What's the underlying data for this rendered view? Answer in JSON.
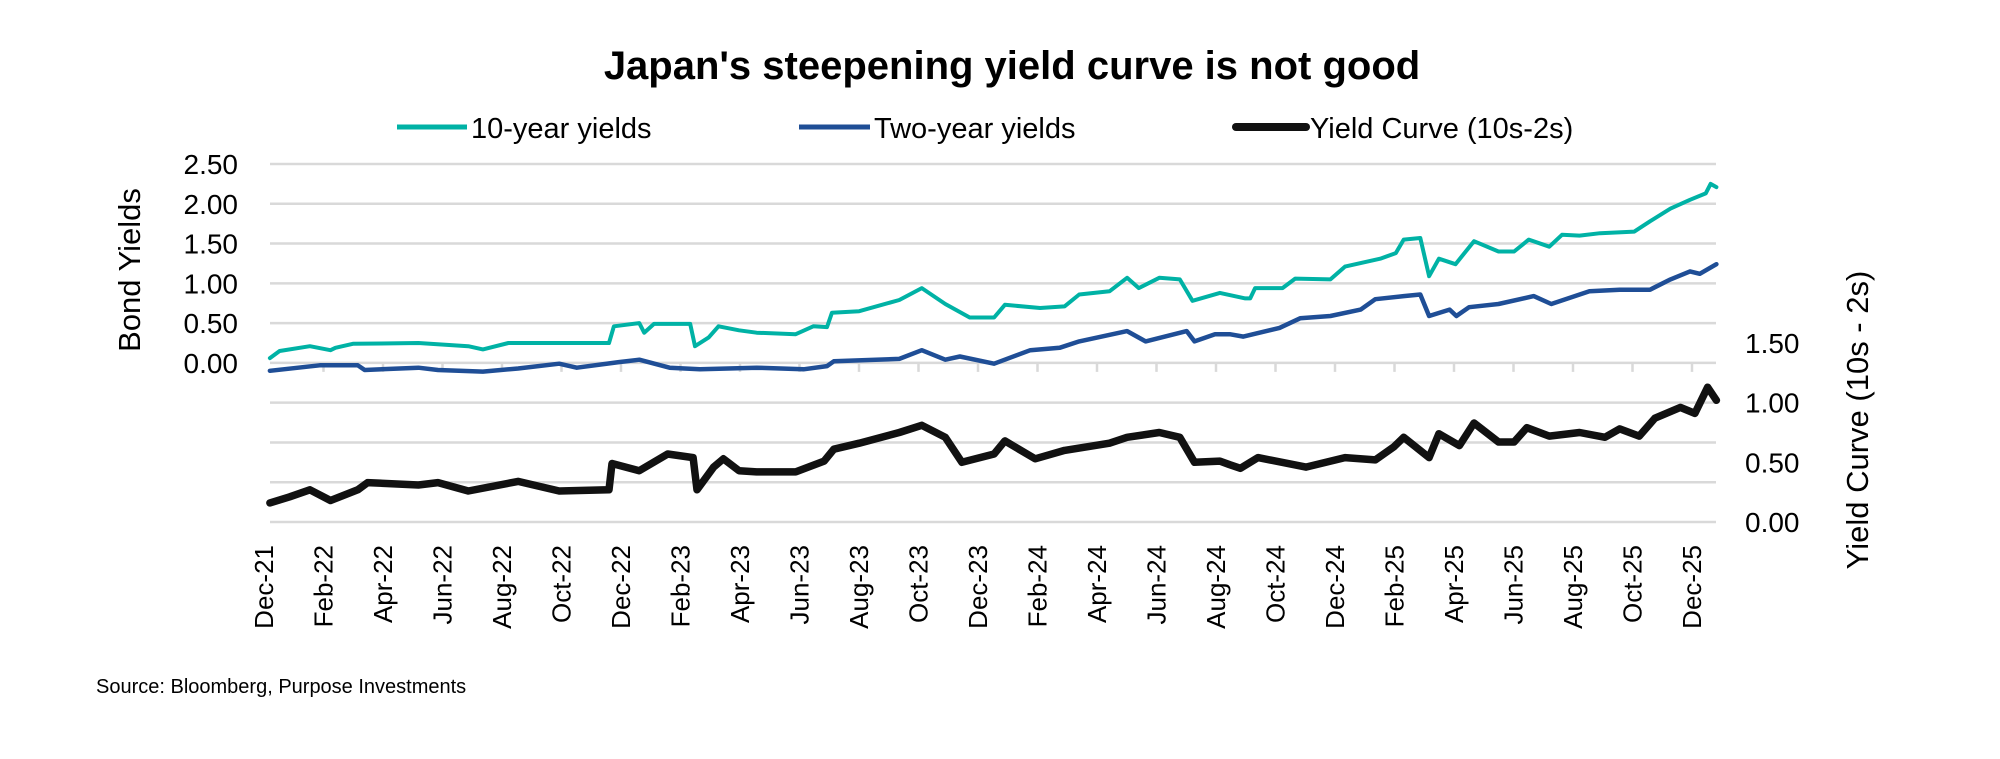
{
  "chart_data": {
    "type": "line",
    "title": "Japan's steepening yield curve is not good",
    "source": "Source: Bloomberg, Purpose Investments",
    "grid": true,
    "legend_position": "top",
    "colors": {
      "ten_year": "#00b2a5",
      "two_year": "#1f4e96",
      "curve": "#111111",
      "grid": "#d9d9d9"
    },
    "x_range": [
      "2021-12-07",
      "2026-01-01"
    ],
    "x_tick_labels": [
      "Dec-21",
      "Feb-22",
      "Apr-22",
      "Jun-22",
      "Aug-22",
      "Oct-22",
      "Dec-22",
      "Feb-23",
      "Apr-23",
      "Jun-23",
      "Aug-23",
      "Oct-23",
      "Dec-23",
      "Feb-24",
      "Apr-24",
      "Jun-24",
      "Aug-24",
      "Oct-24",
      "Dec-24",
      "Feb-25",
      "Apr-25",
      "Jun-25",
      "Aug-25",
      "Oct-25",
      "Dec-25"
    ],
    "left_axis": {
      "label": "Bond Yields",
      "range": [
        -2.0,
        2.5
      ],
      "tick_labels": [
        "0.00",
        "0.50",
        "1.00",
        "1.50",
        "2.00",
        "2.50"
      ]
    },
    "right_axis": {
      "label": "Yield Curve (10s - 2s)",
      "range": [
        0,
        3.0
      ],
      "tick_labels": [
        "0.00",
        "0.50",
        "1.00",
        "1.50"
      ]
    },
    "legend": [
      "10-year yields",
      "Two-year yields",
      "Yield Curve (10s-2s)"
    ],
    "series": [
      {
        "name": "10-year yields",
        "axis": "left",
        "points": [
          [
            "2021-12-07",
            0.06
          ],
          [
            "2021-12-17",
            0.15
          ],
          [
            "2022-01-17",
            0.21
          ],
          [
            "2022-02-07",
            0.16
          ],
          [
            "2022-02-12",
            0.19
          ],
          [
            "2022-03-02",
            0.24
          ],
          [
            "2022-05-08",
            0.25
          ],
          [
            "2022-06-28",
            0.21
          ],
          [
            "2022-07-13",
            0.17
          ],
          [
            "2022-08-08",
            0.25
          ],
          [
            "2022-11-19",
            0.25
          ],
          [
            "2022-11-24",
            0.46
          ],
          [
            "2022-12-20",
            0.5
          ],
          [
            "2022-12-25",
            0.38
          ],
          [
            "2023-01-04",
            0.49
          ],
          [
            "2023-02-10",
            0.49
          ],
          [
            "2023-02-15",
            0.21
          ],
          [
            "2023-03-01",
            0.32
          ],
          [
            "2023-03-11",
            0.46
          ],
          [
            "2023-04-01",
            0.41
          ],
          [
            "2023-04-19",
            0.38
          ],
          [
            "2023-05-29",
            0.36
          ],
          [
            "2023-06-16",
            0.46
          ],
          [
            "2023-06-30",
            0.45
          ],
          [
            "2023-07-05",
            0.63
          ],
          [
            "2023-08-02",
            0.65
          ],
          [
            "2023-09-12",
            0.79
          ],
          [
            "2023-10-05",
            0.94
          ],
          [
            "2023-10-29",
            0.74
          ],
          [
            "2023-11-23",
            0.57
          ],
          [
            "2023-12-18",
            0.57
          ],
          [
            "2023-12-29",
            0.73
          ],
          [
            "2024-02-03",
            0.69
          ],
          [
            "2024-02-28",
            0.71
          ],
          [
            "2024-03-14",
            0.86
          ],
          [
            "2024-04-14",
            0.9
          ],
          [
            "2024-05-02",
            1.07
          ],
          [
            "2024-05-14",
            0.94
          ],
          [
            "2024-06-04",
            1.07
          ],
          [
            "2024-06-25",
            1.05
          ],
          [
            "2024-07-08",
            0.78
          ],
          [
            "2024-08-05",
            0.88
          ],
          [
            "2024-08-31",
            0.81
          ],
          [
            "2024-09-05",
            0.81
          ],
          [
            "2024-09-10",
            0.94
          ],
          [
            "2024-10-08",
            0.94
          ],
          [
            "2024-10-21",
            1.06
          ],
          [
            "2024-11-26",
            1.05
          ],
          [
            "2024-12-11",
            1.21
          ],
          [
            "2025-01-16",
            1.31
          ],
          [
            "2025-02-01",
            1.38
          ],
          [
            "2025-02-09",
            1.55
          ],
          [
            "2025-02-26",
            1.57
          ],
          [
            "2025-03-07",
            1.09
          ],
          [
            "2025-03-17",
            1.31
          ],
          [
            "2025-04-03",
            1.24
          ],
          [
            "2025-04-22",
            1.53
          ],
          [
            "2025-05-17",
            1.4
          ],
          [
            "2025-06-02",
            1.4
          ],
          [
            "2025-06-17",
            1.55
          ],
          [
            "2025-07-08",
            1.46
          ],
          [
            "2025-07-21",
            1.61
          ],
          [
            "2025-08-08",
            1.6
          ],
          [
            "2025-08-29",
            1.63
          ],
          [
            "2025-10-03",
            1.65
          ],
          [
            "2025-10-19",
            1.78
          ],
          [
            "2025-11-09",
            1.94
          ],
          [
            "2025-11-29",
            2.05
          ],
          [
            "2025-12-15",
            2.13
          ],
          [
            "2025-12-20",
            2.25
          ],
          [
            "2025-12-26",
            2.21
          ]
        ]
      },
      {
        "name": "Two-year yields",
        "axis": "left",
        "points": [
          [
            "2021-12-07",
            -0.1
          ],
          [
            "2022-01-27",
            -0.03
          ],
          [
            "2022-03-07",
            -0.03
          ],
          [
            "2022-03-14",
            -0.09
          ],
          [
            "2022-05-08",
            -0.06
          ],
          [
            "2022-05-28",
            -0.09
          ],
          [
            "2022-07-13",
            -0.11
          ],
          [
            "2022-08-18",
            -0.07
          ],
          [
            "2022-09-29",
            -0.01
          ],
          [
            "2022-10-17",
            -0.06
          ],
          [
            "2022-11-29",
            0.01
          ],
          [
            "2022-12-20",
            0.04
          ],
          [
            "2023-01-20",
            -0.06
          ],
          [
            "2023-02-20",
            -0.08
          ],
          [
            "2023-04-19",
            -0.06
          ],
          [
            "2023-06-06",
            -0.08
          ],
          [
            "2023-06-30",
            -0.04
          ],
          [
            "2023-07-07",
            0.02
          ],
          [
            "2023-09-12",
            0.05
          ],
          [
            "2023-10-05",
            0.16
          ],
          [
            "2023-10-29",
            0.04
          ],
          [
            "2023-11-13",
            0.08
          ],
          [
            "2023-12-18",
            -0.01
          ],
          [
            "2024-01-24",
            0.16
          ],
          [
            "2024-02-23",
            0.19
          ],
          [
            "2024-03-14",
            0.27
          ],
          [
            "2024-05-02",
            0.4
          ],
          [
            "2024-05-21",
            0.27
          ],
          [
            "2024-07-02",
            0.4
          ],
          [
            "2024-07-10",
            0.27
          ],
          [
            "2024-07-31",
            0.36
          ],
          [
            "2024-08-15",
            0.36
          ],
          [
            "2024-08-29",
            0.33
          ],
          [
            "2024-10-05",
            0.44
          ],
          [
            "2024-10-26",
            0.56
          ],
          [
            "2024-11-26",
            0.59
          ],
          [
            "2024-12-27",
            0.67
          ],
          [
            "2025-01-11",
            0.8
          ],
          [
            "2025-02-09",
            0.84
          ],
          [
            "2025-02-26",
            0.86
          ],
          [
            "2025-03-07",
            0.59
          ],
          [
            "2025-03-28",
            0.67
          ],
          [
            "2025-04-04",
            0.59
          ],
          [
            "2025-04-17",
            0.7
          ],
          [
            "2025-05-17",
            0.74
          ],
          [
            "2025-06-22",
            0.84
          ],
          [
            "2025-07-10",
            0.74
          ],
          [
            "2025-08-18",
            0.9
          ],
          [
            "2025-09-18",
            0.92
          ],
          [
            "2025-10-19",
            0.92
          ],
          [
            "2025-11-09",
            1.05
          ],
          [
            "2025-11-29",
            1.15
          ],
          [
            "2025-12-09",
            1.12
          ],
          [
            "2025-12-26",
            1.24
          ]
        ]
      },
      {
        "name": "Yield Curve (10s-2s)",
        "axis": "right",
        "points": [
          [
            "2021-12-07",
            0.16
          ],
          [
            "2021-12-27",
            0.21
          ],
          [
            "2022-01-17",
            0.27
          ],
          [
            "2022-02-07",
            0.18
          ],
          [
            "2022-03-07",
            0.27
          ],
          [
            "2022-03-17",
            0.33
          ],
          [
            "2022-05-08",
            0.31
          ],
          [
            "2022-05-28",
            0.33
          ],
          [
            "2022-06-28",
            0.26
          ],
          [
            "2022-08-18",
            0.34
          ],
          [
            "2022-09-29",
            0.26
          ],
          [
            "2022-11-19",
            0.27
          ],
          [
            "2022-11-22",
            0.49
          ],
          [
            "2022-12-20",
            0.43
          ],
          [
            "2023-01-18",
            0.57
          ],
          [
            "2023-02-13",
            0.54
          ],
          [
            "2023-02-17",
            0.27
          ],
          [
            "2023-03-06",
            0.46
          ],
          [
            "2023-03-16",
            0.53
          ],
          [
            "2023-04-01",
            0.43
          ],
          [
            "2023-04-19",
            0.42
          ],
          [
            "2023-05-29",
            0.42
          ],
          [
            "2023-06-27",
            0.51
          ],
          [
            "2023-07-07",
            0.61
          ],
          [
            "2023-08-02",
            0.66
          ],
          [
            "2023-09-12",
            0.75
          ],
          [
            "2023-10-05",
            0.81
          ],
          [
            "2023-10-29",
            0.71
          ],
          [
            "2023-11-15",
            0.5
          ],
          [
            "2023-12-18",
            0.57
          ],
          [
            "2023-12-29",
            0.68
          ],
          [
            "2024-01-29",
            0.53
          ],
          [
            "2024-02-28",
            0.6
          ],
          [
            "2024-04-14",
            0.66
          ],
          [
            "2024-05-02",
            0.71
          ],
          [
            "2024-06-04",
            0.75
          ],
          [
            "2024-06-25",
            0.71
          ],
          [
            "2024-07-10",
            0.5
          ],
          [
            "2024-08-05",
            0.51
          ],
          [
            "2024-08-26",
            0.45
          ],
          [
            "2024-08-15",
            0.48
          ],
          [
            "2024-09-13",
            0.54
          ],
          [
            "2024-11-01",
            0.46
          ],
          [
            "2024-12-11",
            0.54
          ],
          [
            "2025-01-11",
            0.52
          ],
          [
            "2025-01-30",
            0.63
          ],
          [
            "2025-02-09",
            0.71
          ],
          [
            "2025-03-07",
            0.54
          ],
          [
            "2025-03-17",
            0.74
          ],
          [
            "2025-04-07",
            0.64
          ],
          [
            "2025-04-22",
            0.83
          ],
          [
            "2025-05-17",
            0.67
          ],
          [
            "2025-06-02",
            0.67
          ],
          [
            "2025-06-15",
            0.79
          ],
          [
            "2025-07-08",
            0.72
          ],
          [
            "2025-08-08",
            0.75
          ],
          [
            "2025-09-03",
            0.71
          ],
          [
            "2025-09-18",
            0.78
          ],
          [
            "2025-10-08",
            0.72
          ],
          [
            "2025-10-24",
            0.87
          ],
          [
            "2025-11-19",
            0.96
          ],
          [
            "2025-12-04",
            0.91
          ],
          [
            "2025-12-17",
            1.13
          ],
          [
            "2025-12-26",
            1.02
          ]
        ]
      }
    ]
  }
}
